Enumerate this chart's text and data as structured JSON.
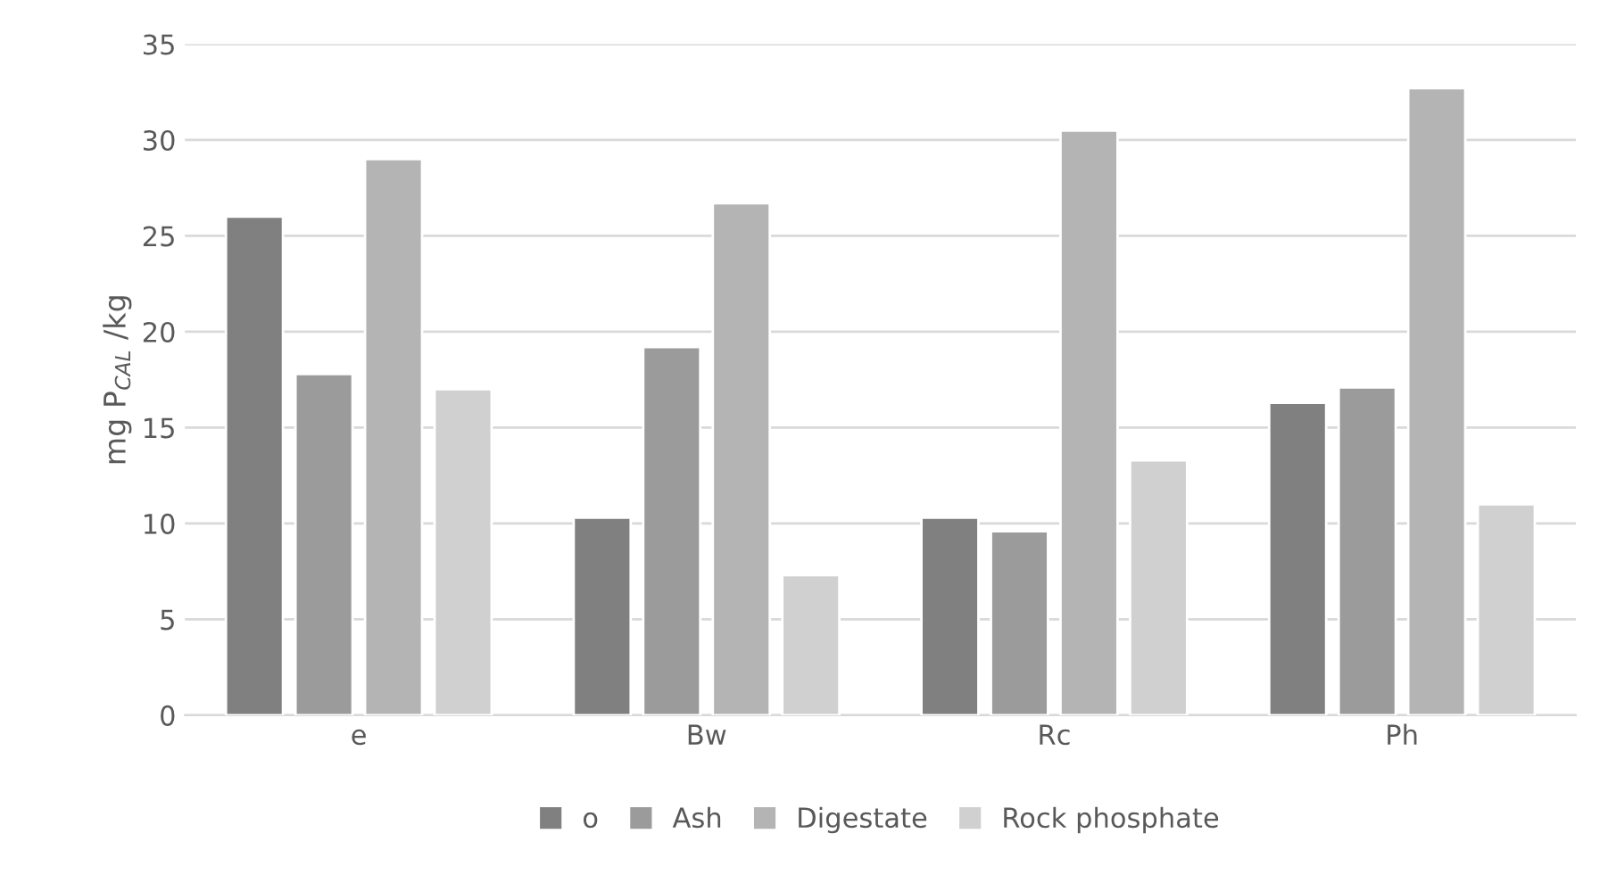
{
  "chart_data": {
    "type": "bar",
    "ylabel": "mg P$_{CAL}$ /kg",
    "categories": [
      "e",
      "Bw",
      "Rc",
      "Ph"
    ],
    "series": [
      {
        "name": "o",
        "color": "#808080",
        "values": [
          26.0,
          10.3,
          10.3,
          16.3
        ]
      },
      {
        "name": "Ash",
        "color": "#9b9b9b",
        "values": [
          17.8,
          19.2,
          9.6,
          17.1
        ]
      },
      {
        "name": "Digestate",
        "color": "#b4b4b4",
        "values": [
          29.0,
          26.7,
          30.5,
          32.7
        ]
      },
      {
        "name": "Rock phosphate",
        "color": "#d0d0d0",
        "values": [
          17.0,
          7.3,
          13.3,
          11.0
        ]
      }
    ],
    "ylim": [
      0,
      35
    ],
    "yticks": [
      0,
      5,
      10,
      15,
      20,
      25,
      30,
      35
    ],
    "grid": "y",
    "legend": "bottom"
  }
}
